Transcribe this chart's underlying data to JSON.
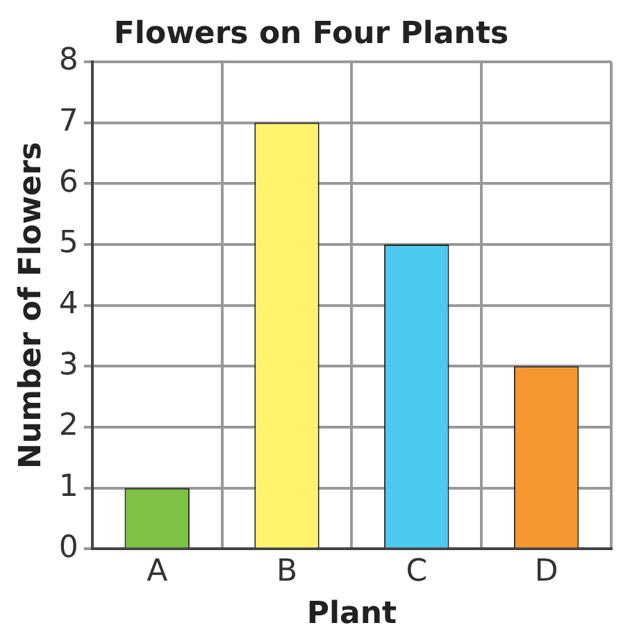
{
  "chart_data": {
    "type": "bar",
    "title": "Flowers on Four Plants",
    "xlabel": "Plant",
    "ylabel": "Number of Flowers",
    "categories": [
      "A",
      "B",
      "C",
      "D"
    ],
    "values": [
      1,
      7,
      5,
      3
    ],
    "colors": [
      "#7dc242",
      "#fff36b",
      "#4cc9f0",
      "#f7982f"
    ],
    "ylim": [
      0,
      8
    ],
    "yticks": [
      0,
      1,
      2,
      3,
      4,
      5,
      6,
      7,
      8
    ],
    "grid": true,
    "legend": false
  }
}
